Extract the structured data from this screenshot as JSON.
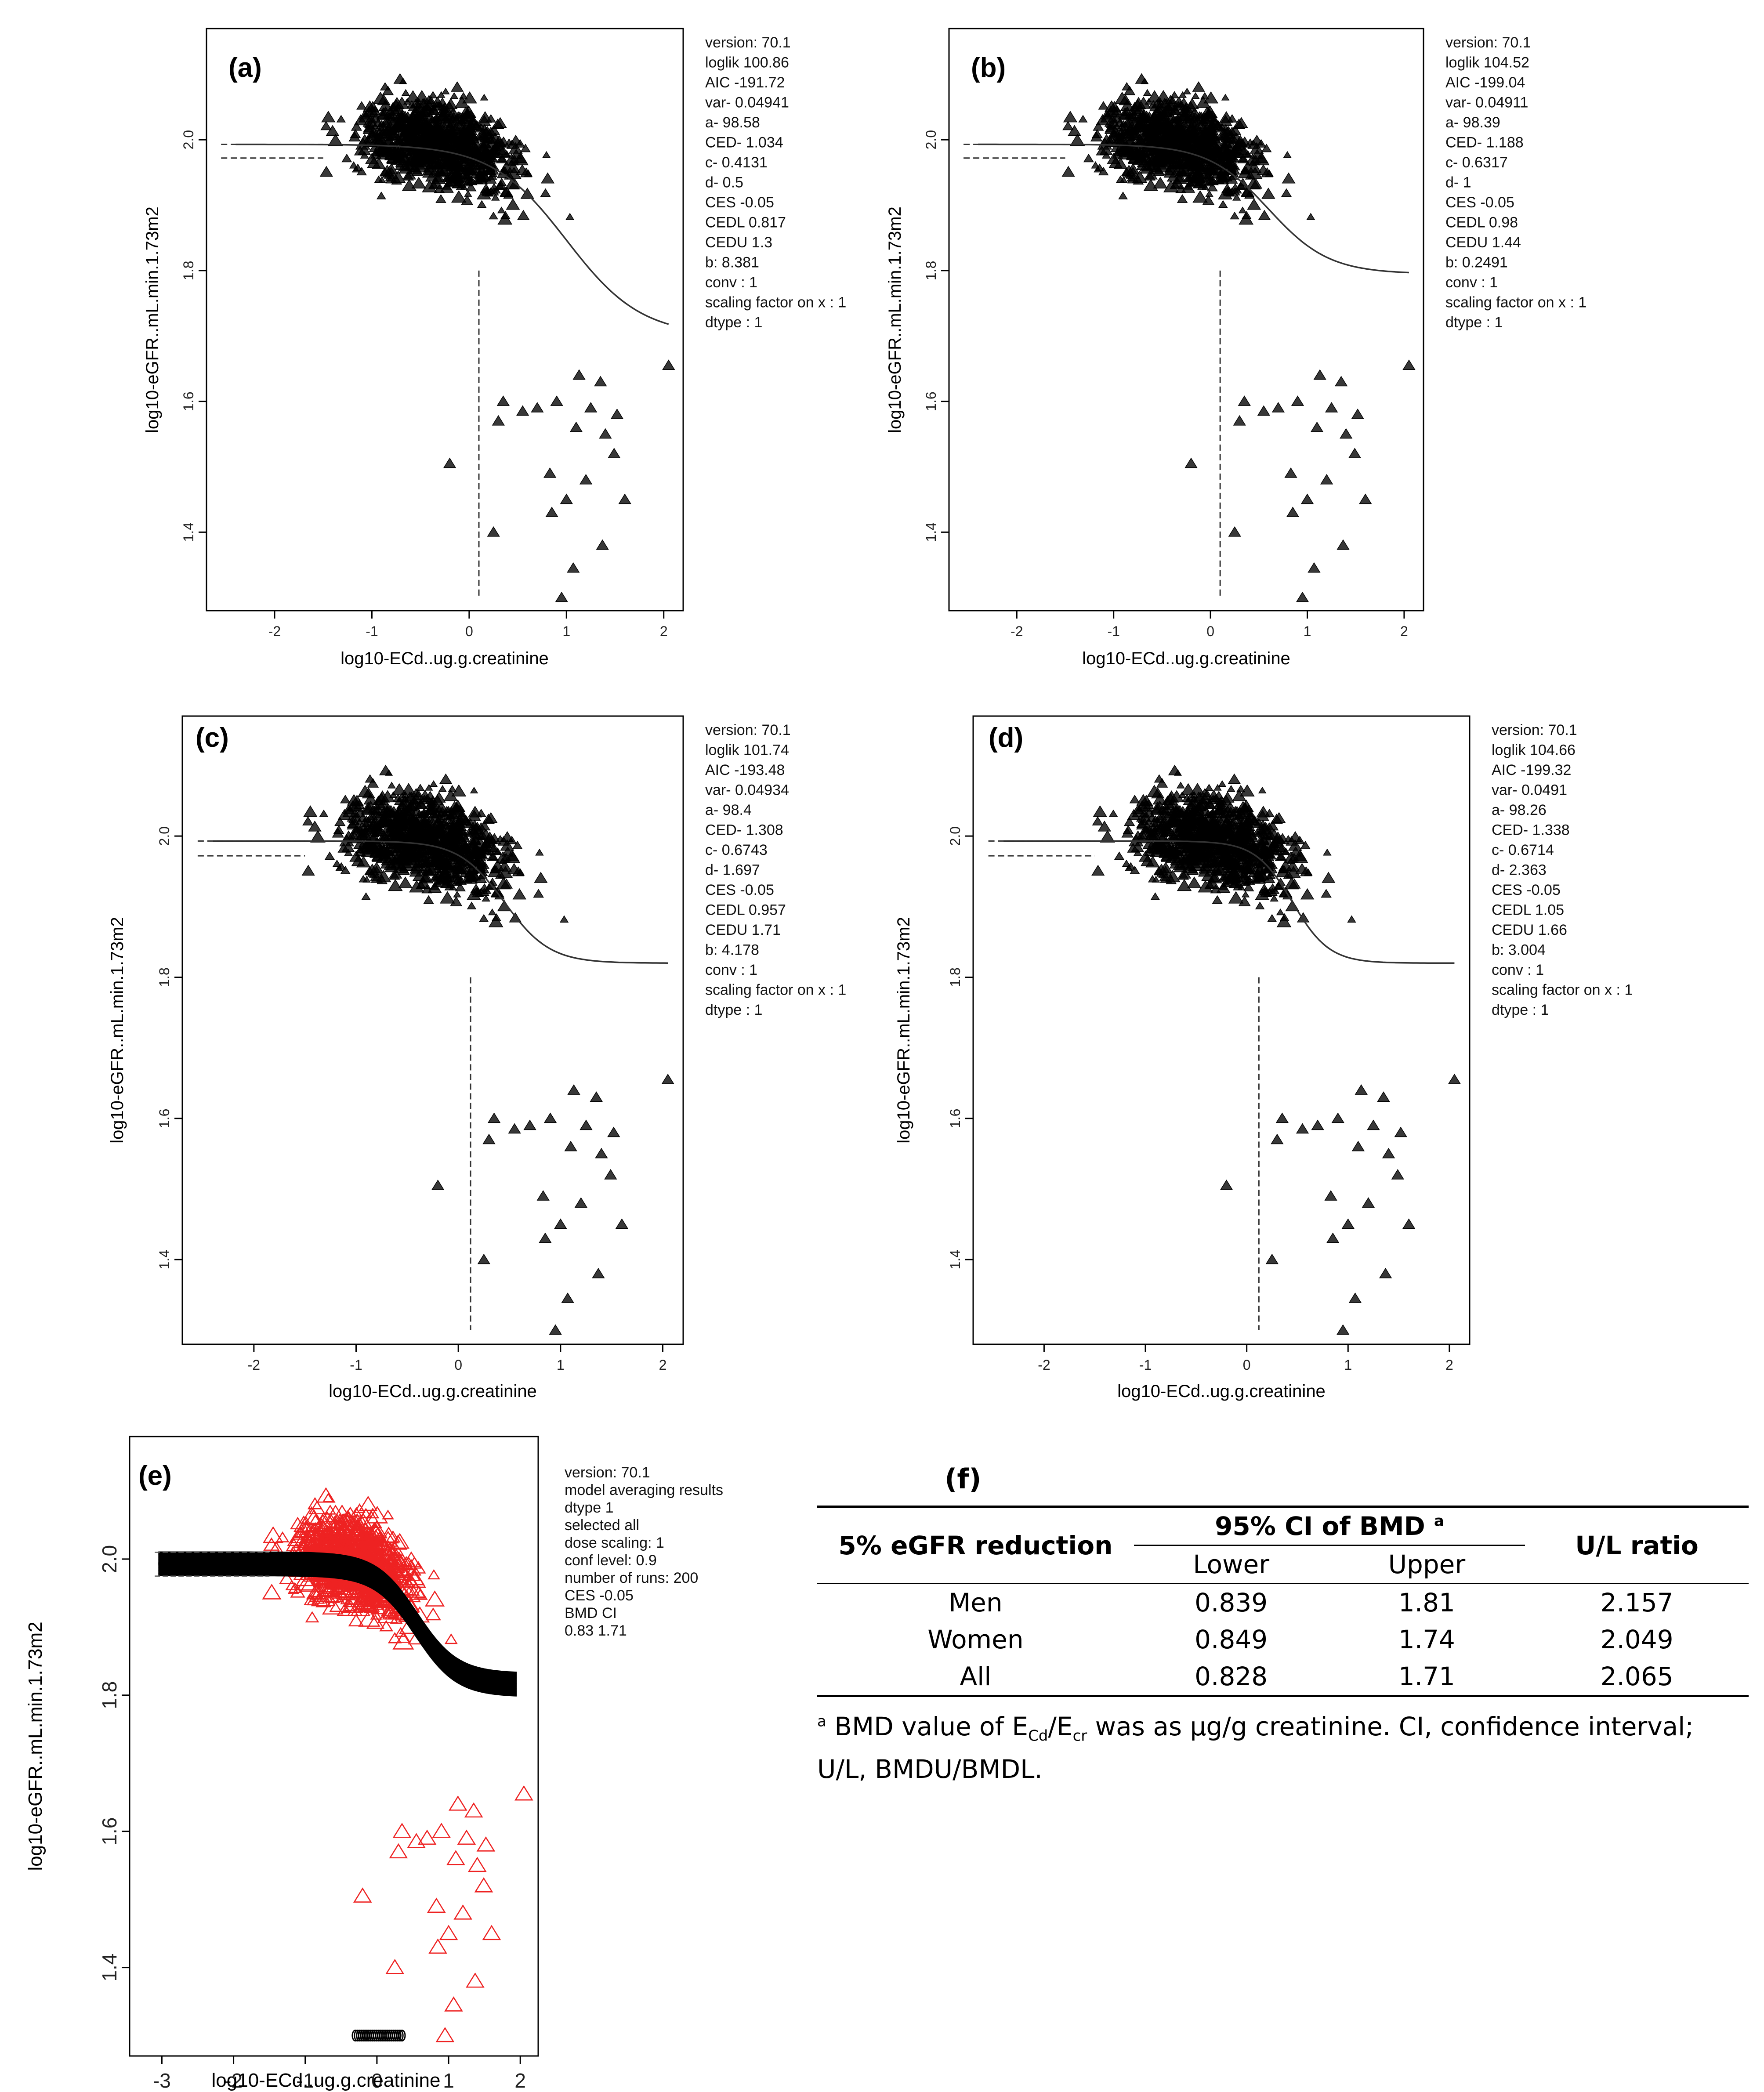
{
  "chart_data": [
    {
      "id": "a",
      "type": "scatter",
      "panel_label": "(a)",
      "xlabel": "log10-ECd..ug.g.creatinine",
      "ylabel": "log10-eGFR..mL.min.1.73m2",
      "xlim": [
        -2.7,
        2.2
      ],
      "ylim": [
        1.28,
        2.17
      ],
      "xticks": [
        -2,
        -1,
        0,
        1,
        2
      ],
      "yticks": [
        1.4,
        1.6,
        1.8,
        2.0
      ],
      "curve": {
        "a": 1.993,
        "b_end": 1.7,
        "mid": 1.0,
        "steep": 2.6
      },
      "ced": 0.1,
      "ced_lines_y": [
        1.993,
        1.972
      ],
      "stats": [
        "version: 70.1",
        "loglik  100.86",
        "AIC  -191.72",
        "var-  0.04941",
        "a-  98.58",
        "CED-  1.034",
        "c-  0.4131",
        "d-  0.5",
        "CES  -0.05",
        "CEDL  0.817",
        "CEDU  1.3",
        "b: 8.381",
        "conv : 1",
        "scaling factor on x : 1",
        "dtype : 1"
      ],
      "data_note": "About 1,000 individual observations (triangle marks) spread over x ≈ -2 to 2, y ≈ 1.3 to 2.15"
    },
    {
      "id": "b",
      "type": "scatter",
      "panel_label": "(b)",
      "xlabel": "log10-ECd..ug.g.creatinine",
      "ylabel": "log10-eGFR..mL.min.1.73m2",
      "xlim": [
        -2.7,
        2.2
      ],
      "ylim": [
        1.28,
        2.17
      ],
      "xticks": [
        -2,
        -1,
        0,
        1,
        2
      ],
      "yticks": [
        1.4,
        1.6,
        1.8,
        2.0
      ],
      "curve": {
        "a": 1.993,
        "b_end": 1.795,
        "mid": 0.6,
        "steep": 3.2
      },
      "ced": 0.1,
      "ced_lines_y": [
        1.993,
        1.972
      ],
      "stats": [
        "version: 70.1",
        "loglik  104.52",
        "AIC  -199.04",
        "var-  0.04911",
        "a-  98.39",
        "CED-  1.188",
        "c-  0.6317",
        "d-  1",
        "CES  -0.05",
        "CEDL  0.98",
        "CEDU  1.44",
        "b: 0.2491",
        "conv : 1",
        "scaling factor on x : 1",
        "dtype : 1"
      ]
    },
    {
      "id": "c",
      "type": "scatter",
      "panel_label": "(c)",
      "xlabel": "log10-ECd..ug.g.creatinine",
      "ylabel": "log10-eGFR..mL.min.1.73m2",
      "xlim": [
        -2.7,
        2.2
      ],
      "ylim": [
        1.28,
        2.17
      ],
      "xticks": [
        -2,
        -1,
        0,
        1,
        2
      ],
      "yticks": [
        1.4,
        1.6,
        1.8,
        2.0
      ],
      "curve": {
        "a": 1.993,
        "b_end": 1.82,
        "mid": 0.45,
        "steep": 4.5
      },
      "ced": 0.12,
      "ced_lines_y": [
        1.993,
        1.972
      ],
      "stats": [
        "version: 70.1",
        "loglik  101.74",
        "AIC  -193.48",
        "var-  0.04934",
        "a-  98.4",
        "CED-  1.308",
        "c-  0.6743",
        "d-  1.697",
        "CES  -0.05",
        "CEDL  0.957",
        "CEDU  1.71",
        "b: 4.178",
        "conv : 1",
        "scaling factor on x : 1",
        "dtype : 1"
      ]
    },
    {
      "id": "d",
      "type": "scatter",
      "panel_label": "(d)",
      "xlabel": "log10-ECd..ug.g.creatinine",
      "ylabel": "log10-eGFR..mL.min.1.73m2",
      "xlim": [
        -2.7,
        2.2
      ],
      "ylim": [
        1.28,
        2.17
      ],
      "xticks": [
        -2,
        -1,
        0,
        1,
        2
      ],
      "yticks": [
        1.4,
        1.6,
        1.8,
        2.0
      ],
      "curve": {
        "a": 1.993,
        "b_end": 1.82,
        "mid": 0.45,
        "steep": 5.5
      },
      "ced": 0.12,
      "ced_lines_y": [
        1.993,
        1.972
      ],
      "stats": [
        "version: 70.1",
        "loglik  104.66",
        "AIC  -199.32",
        "var-  0.0491",
        "a-  98.26",
        "CED-  1.338",
        "c-  0.6714",
        "d-  2.363",
        "CES  -0.05",
        "CEDL  1.05",
        "CEDU  1.66",
        "b: 3.004",
        "conv : 1",
        "scaling factor on x : 1",
        "dtype : 1"
      ]
    },
    {
      "id": "e",
      "type": "scatter",
      "panel_label": "(e)",
      "xlabel": "log10-ECd..ug.g.creatinine",
      "ylabel": "log10-eGFR..mL.min.1.73m2",
      "xlim": [
        -3.45,
        2.25
      ],
      "ylim": [
        1.27,
        2.18
      ],
      "xticks": [
        -3,
        -2,
        -1,
        0,
        1,
        2
      ],
      "yticks": [
        1.4,
        1.6,
        1.8,
        2.0
      ],
      "curve": {
        "a": 1.993,
        "b_end": 1.815,
        "mid": 0.55,
        "steep": 3.5
      },
      "ci_band": [
        1.975,
        2.01
      ],
      "bmd_ci_y": 1.3,
      "bmd_ci_x": [
        -0.3,
        0.35
      ],
      "marker_color": "#ee2222",
      "stats": [
        "version: 70.1",
        "model averaging results",
        "dtype  1",
        "selected  all",
        "dose scaling: 1",
        "conf level: 0.9",
        "number of runs: 200",
        "CES  -0.05",
        "BMD CI",
        "0.83  1.71"
      ]
    }
  ],
  "table": {
    "label": "(f)",
    "row_header": "5% eGFR reduction",
    "ci_header": "95% CI of BMD",
    "ci_sup": "a",
    "lower": "Lower",
    "upper": "Upper",
    "ratio_header": "U/L ratio",
    "rows": [
      {
        "group": "Men",
        "lower": "0.839",
        "upper": "1.81",
        "ratio": "2.157"
      },
      {
        "group": "Women",
        "lower": "0.849",
        "upper": "1.74",
        "ratio": "2.049"
      },
      {
        "group": "All",
        "lower": "0.828",
        "upper": "1.71",
        "ratio": "2.065"
      }
    ],
    "footnote_sup": "a",
    "footnote_a": " BMD value of E",
    "footnote_sub1": "Cd",
    "footnote_b": "/E",
    "footnote_sub2": "cr",
    "footnote_c": " was as μg/g creatinine. CI, confidence interval;",
    "footnote_d": "U/L, BMDU/BMDL."
  }
}
